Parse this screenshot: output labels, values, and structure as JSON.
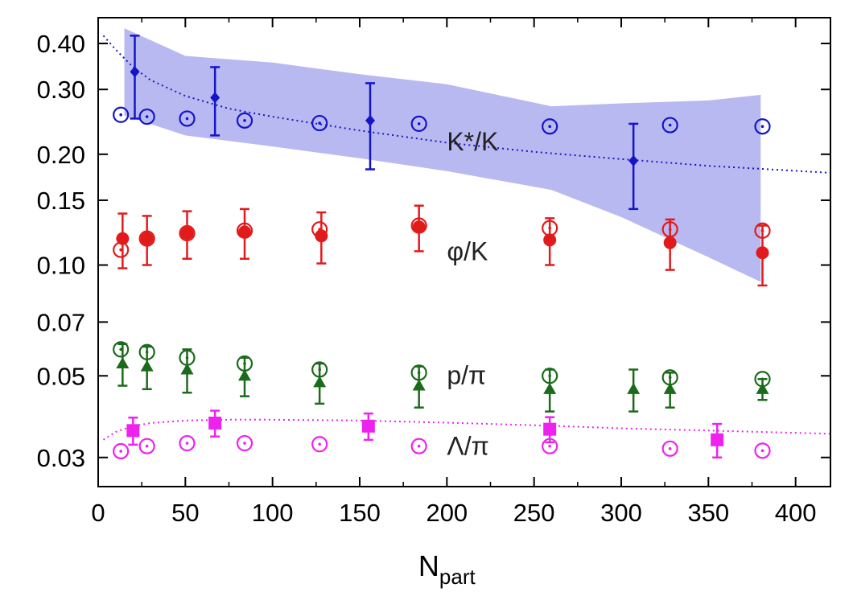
{
  "chart_data": {
    "type": "scatter",
    "title": "",
    "xlabel": "N",
    "xlabel_subscript": "part",
    "ylabel": "",
    "xlim": [
      0,
      420
    ],
    "ylim": [
      0.025,
      0.47
    ],
    "yscale": "log",
    "xticks": [
      0,
      50,
      100,
      150,
      200,
      250,
      300,
      350,
      400
    ],
    "xtick_labels": [
      "0",
      "50",
      "100",
      "150",
      "200",
      "250",
      "300",
      "350",
      "400"
    ],
    "yticks": [
      0.03,
      0.05,
      0.07,
      0.1,
      0.15,
      0.2,
      0.3,
      0.4
    ],
    "ytick_labels": [
      "0.03",
      "0.05",
      "0.07",
      "0.10",
      "0.15",
      "0.20",
      "0.30",
      "0.40"
    ],
    "grid": false,
    "colors": {
      "kstar": "#1515c8",
      "kstar_band": "#b9b9f2",
      "phi": "#e11b1b",
      "proton": "#1a6b1a",
      "lambda": "#ee22ee"
    },
    "series": [
      {
        "id": "kstar",
        "name": "K*/K",
        "band": {
          "x": [
            15,
            50,
            100,
            150,
            200,
            260,
            300,
            350,
            380
          ],
          "upper": [
            0.44,
            0.37,
            0.355,
            0.33,
            0.31,
            0.27,
            0.275,
            0.28,
            0.29
          ],
          "lower": [
            0.255,
            0.225,
            0.21,
            0.195,
            0.18,
            0.16,
            0.135,
            0.105,
            0.09
          ]
        },
        "fit_curve": {
          "x": [
            3,
            10,
            20,
            30,
            50,
            75,
            100,
            150,
            200,
            250,
            300,
            350,
            420
          ],
          "y": [
            0.42,
            0.385,
            0.345,
            0.318,
            0.288,
            0.266,
            0.253,
            0.232,
            0.215,
            0.203,
            0.194,
            0.186,
            0.178
          ]
        },
        "filled": {
          "x": [
            21,
            67,
            156,
            307
          ],
          "y": [
            0.335,
            0.285,
            0.247,
            0.192
          ],
          "err": [
            0.085,
            0.06,
            0.065,
            0.05
          ]
        },
        "open": {
          "x": [
            13,
            28,
            51,
            84,
            127,
            184,
            259,
            328,
            381
          ],
          "y": [
            0.256,
            0.253,
            0.25,
            0.247,
            0.243,
            0.242,
            0.238,
            0.24,
            0.238
          ]
        }
      },
      {
        "id": "phi",
        "name": "φ/K",
        "filled": {
          "x": [
            14,
            28,
            51,
            84,
            128,
            184,
            259,
            328,
            381
          ],
          "y": [
            0.118,
            0.118,
            0.122,
            0.123,
            0.12,
            0.127,
            0.117,
            0.115,
            0.108
          ],
          "err": [
            0.02,
            0.018,
            0.018,
            0.019,
            0.019,
            0.018,
            0.017,
            0.018,
            0.02
          ]
        },
        "open": {
          "x": [
            13,
            28,
            51,
            84,
            127,
            184,
            259,
            328,
            381
          ],
          "y": [
            0.11,
            0.118,
            0.122,
            0.124,
            0.125,
            0.128,
            0.126,
            0.125,
            0.124
          ]
        }
      },
      {
        "id": "proton",
        "name": "p/π",
        "filled": {
          "x": [
            14,
            28,
            51,
            84,
            127,
            184,
            259,
            307,
            328,
            381
          ],
          "y": [
            0.054,
            0.053,
            0.052,
            0.05,
            0.048,
            0.047,
            0.046,
            0.046,
            0.046,
            0.046
          ],
          "err": [
            0.007,
            0.007,
            0.007,
            0.006,
            0.006,
            0.006,
            0.006,
            0.006,
            0.005,
            0.003
          ]
        },
        "open": {
          "x": [
            13,
            28,
            51,
            84,
            127,
            184,
            259,
            328,
            381
          ],
          "y": [
            0.059,
            0.058,
            0.056,
            0.054,
            0.052,
            0.051,
            0.05,
            0.0495,
            0.049
          ]
        }
      },
      {
        "id": "lambda",
        "name": "Λ/π",
        "fit_curve": {
          "x": [
            3,
            10,
            20,
            30,
            50,
            75,
            100,
            150,
            200,
            250,
            300,
            350,
            420
          ],
          "y": [
            0.0335,
            0.0352,
            0.0365,
            0.0372,
            0.0378,
            0.038,
            0.038,
            0.0378,
            0.0373,
            0.0367,
            0.036,
            0.0355,
            0.0348
          ]
        },
        "filled": {
          "x": [
            20,
            67,
            155,
            259,
            355
          ],
          "y": [
            0.0355,
            0.0372,
            0.0365,
            0.0358,
            0.0335
          ],
          "err": [
            0.003,
            0.003,
            0.003,
            0.0028,
            0.0035
          ]
        },
        "open": {
          "x": [
            13,
            28,
            51,
            84,
            127,
            184,
            259,
            328,
            381
          ],
          "y": [
            0.0312,
            0.0322,
            0.0328,
            0.0328,
            0.0326,
            0.0322,
            0.0322,
            0.0317,
            0.0313
          ]
        }
      }
    ],
    "labels": [
      {
        "id": "kstar",
        "text": "K*/K",
        "x": 200,
        "y": 0.205
      },
      {
        "id": "phi",
        "text": "φ/K",
        "x": 200,
        "y": 0.103
      },
      {
        "id": "proton",
        "text": "p/π",
        "x": 200,
        "y": 0.0475
      },
      {
        "id": "lambda",
        "text": "Λ/π",
        "x": 200,
        "y": 0.0305
      }
    ]
  }
}
